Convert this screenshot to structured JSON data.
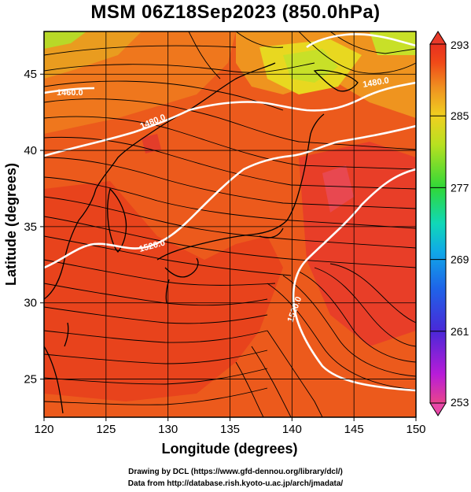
{
  "title": "MSM 06Z18Sep2023 (850.0hPa)",
  "map": {
    "xlabel": "Longitude (degrees)",
    "ylabel": "Latitude  (degrees)",
    "lon_range": [
      120,
      150
    ],
    "lat_range": [
      22.5,
      47.8
    ],
    "lon_ticks": [
      "120",
      "125",
      "130",
      "135",
      "140",
      "145",
      "150"
    ],
    "lat_ticks": [
      "25",
      "30",
      "35",
      "40",
      "45"
    ],
    "grid": true,
    "contour_labels": [
      "1460.0",
      "1480.0",
      "1480.0",
      "1520.0",
      "1520.0"
    ],
    "contour_color": "#ffffff",
    "streamline_color": "#000000",
    "coastline_color": "#000000"
  },
  "colorbar": {
    "min": 253,
    "max": 293,
    "labels": [
      "293",
      "285",
      "277",
      "269",
      "261",
      "253"
    ],
    "colors": [
      "#e8448c",
      "#b81cd8",
      "#4a28d8",
      "#1e64e8",
      "#10a8e8",
      "#10d8b8",
      "#30d838",
      "#b8e020",
      "#f0d020",
      "#f09020",
      "#f04818",
      "#e83020"
    ]
  },
  "credits": {
    "line1": "Drawing by DCL (https://www.gfd-dennou.org/library/dcl/)",
    "line2": "Data from http://database.rish.kyoto-u.ac.jp/arch/jmadata/"
  }
}
